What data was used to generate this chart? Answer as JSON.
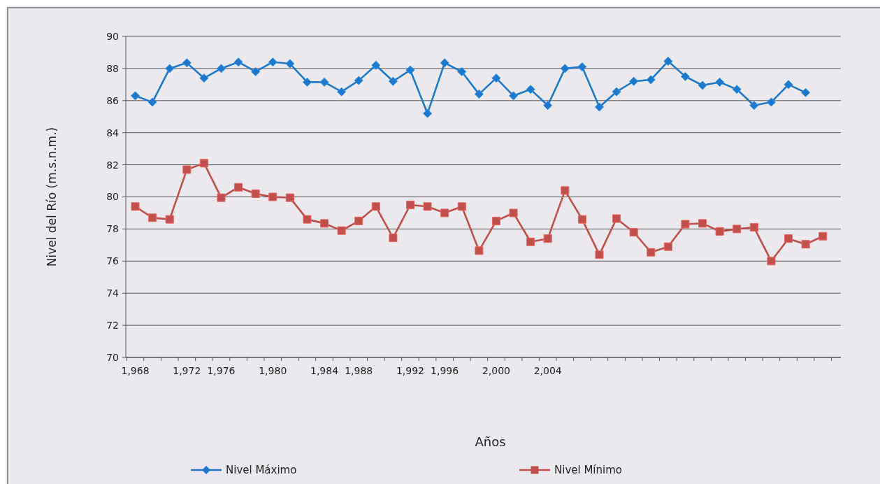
{
  "chart_data": {
    "type": "line",
    "xlabel": "Años",
    "ylabel": "Nivel del Río (m.s.n.m.)",
    "categories": [
      "1,968",
      null,
      null,
      "1,972",
      null,
      "1,976",
      null,
      null,
      "1,980",
      null,
      null,
      "1,984",
      null,
      "1,988",
      null,
      null,
      "1,992",
      null,
      "1,996",
      null,
      null,
      "2,000",
      null,
      null,
      "2,004",
      null,
      null,
      null,
      null,
      null,
      null,
      null,
      null,
      null,
      null,
      null,
      null,
      null,
      null,
      null,
      null
    ],
    "series": [
      {
        "name": "Nivel Máximo",
        "color": "#1f78c8",
        "marker": "diamond",
        "values": [
          86.3,
          85.9,
          88.0,
          88.35,
          87.4,
          88.0,
          88.4,
          87.8,
          88.4,
          88.3,
          87.15,
          87.15,
          86.55,
          87.25,
          88.2,
          87.2,
          87.9,
          85.2,
          88.35,
          87.8,
          86.4,
          87.4,
          86.3,
          86.7,
          85.7,
          88.0,
          88.1,
          85.6,
          86.55,
          87.2,
          87.3,
          88.45,
          87.5,
          86.95,
          87.15,
          86.7,
          85.7,
          85.9,
          87.0,
          86.5,
          null
        ]
      },
      {
        "name": "Nivel Mínimo",
        "color": "#c0504d",
        "marker": "square",
        "values": [
          79.4,
          78.7,
          78.6,
          81.7,
          82.1,
          79.95,
          80.6,
          80.2,
          80.0,
          79.95,
          78.6,
          78.35,
          77.9,
          78.5,
          79.4,
          77.45,
          79.5,
          79.4,
          79.0,
          79.4,
          76.65,
          78.5,
          79.0,
          77.2,
          77.4,
          80.4,
          78.6,
          76.4,
          78.65,
          77.8,
          76.55,
          76.9,
          78.3,
          78.35,
          77.85,
          78.0,
          78.1,
          76.0,
          77.4,
          77.05,
          77.55
        ]
      }
    ],
    "ylim": [
      70,
      90
    ],
    "yticks": [
      70,
      72,
      74,
      76,
      78,
      80,
      82,
      84,
      86,
      88,
      90
    ],
    "grid": "y",
    "legend": "bottom",
    "line_style": "solid"
  }
}
